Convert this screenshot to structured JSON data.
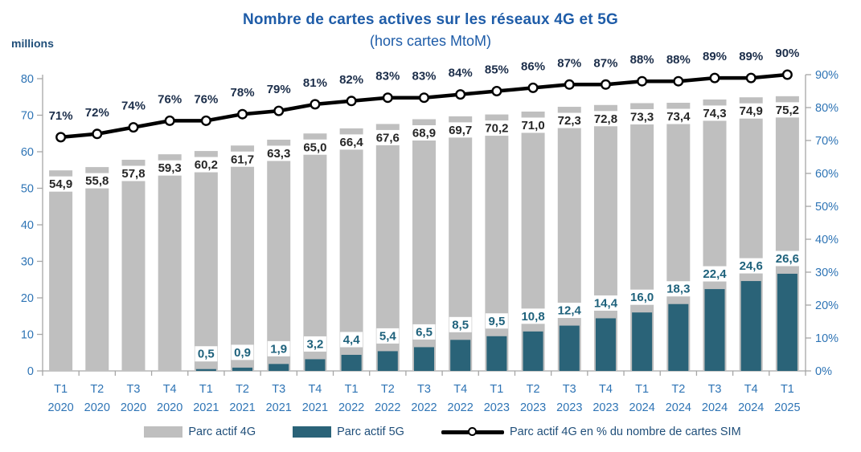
{
  "title": "Nombre de cartes actives sur les réseaux 4G et 5G",
  "subtitle": "(hors cartes MtoM)",
  "chart_data": {
    "type": "bar",
    "subtype": "combo-bar-line",
    "title": "Nombre de cartes actives sur les réseaux 4G et 5G (hors cartes MtoM)",
    "categories": [
      "T1 2020",
      "T2 2020",
      "T3 2020",
      "T4 2020",
      "T1 2021",
      "T2 2021",
      "T3 2021",
      "T4 2021",
      "T1 2022",
      "T2 2022",
      "T3 2022",
      "T4 2022",
      "T1 2023",
      "T2 2023",
      "T3 2023",
      "T4 2023",
      "T1 2024",
      "T2 2024",
      "T3 2024",
      "T4 2024",
      "T1 2025"
    ],
    "series": [
      {
        "name": "Parc actif 4G",
        "type": "bar",
        "axis": "left",
        "color": "#BFBFBF",
        "values": [
          54.9,
          55.8,
          57.8,
          59.3,
          60.2,
          61.7,
          63.3,
          65.0,
          66.4,
          67.6,
          68.9,
          69.7,
          70.2,
          71.0,
          72.3,
          72.8,
          73.3,
          73.4,
          74.3,
          74.9,
          75.2
        ]
      },
      {
        "name": "Parc actif 5G",
        "type": "bar",
        "axis": "left",
        "color": "#2A6378",
        "values": [
          null,
          null,
          null,
          null,
          0.5,
          0.9,
          1.9,
          3.2,
          4.4,
          5.4,
          6.5,
          8.5,
          9.5,
          10.8,
          12.4,
          14.4,
          16.0,
          18.3,
          22.4,
          24.6,
          26.6
        ]
      },
      {
        "name": "Parc actif 4G en % du nombre de cartes SIM",
        "type": "line",
        "axis": "right",
        "color": "#000000",
        "marker": "open-circle",
        "values": [
          71,
          72,
          74,
          76,
          76,
          78,
          79,
          81,
          82,
          83,
          83,
          84,
          85,
          86,
          87,
          87,
          88,
          88,
          89,
          89,
          90
        ]
      }
    ],
    "left_axis": {
      "label": "millions",
      "min": 0,
      "max": 80,
      "step": 10
    },
    "right_axis": {
      "min": 0,
      "max": 90,
      "step": 10,
      "suffix": "%"
    },
    "grid": false,
    "legend_position": "bottom",
    "value_label_format": "decimal-comma",
    "label_colors": {
      "bar_4g": "#262626",
      "bar_5g": "#1F627C",
      "line_pct": "#1C2E4A"
    },
    "axis_colors": {
      "line": "#A6A6A6",
      "tick_labels": "#2E74B5"
    }
  }
}
